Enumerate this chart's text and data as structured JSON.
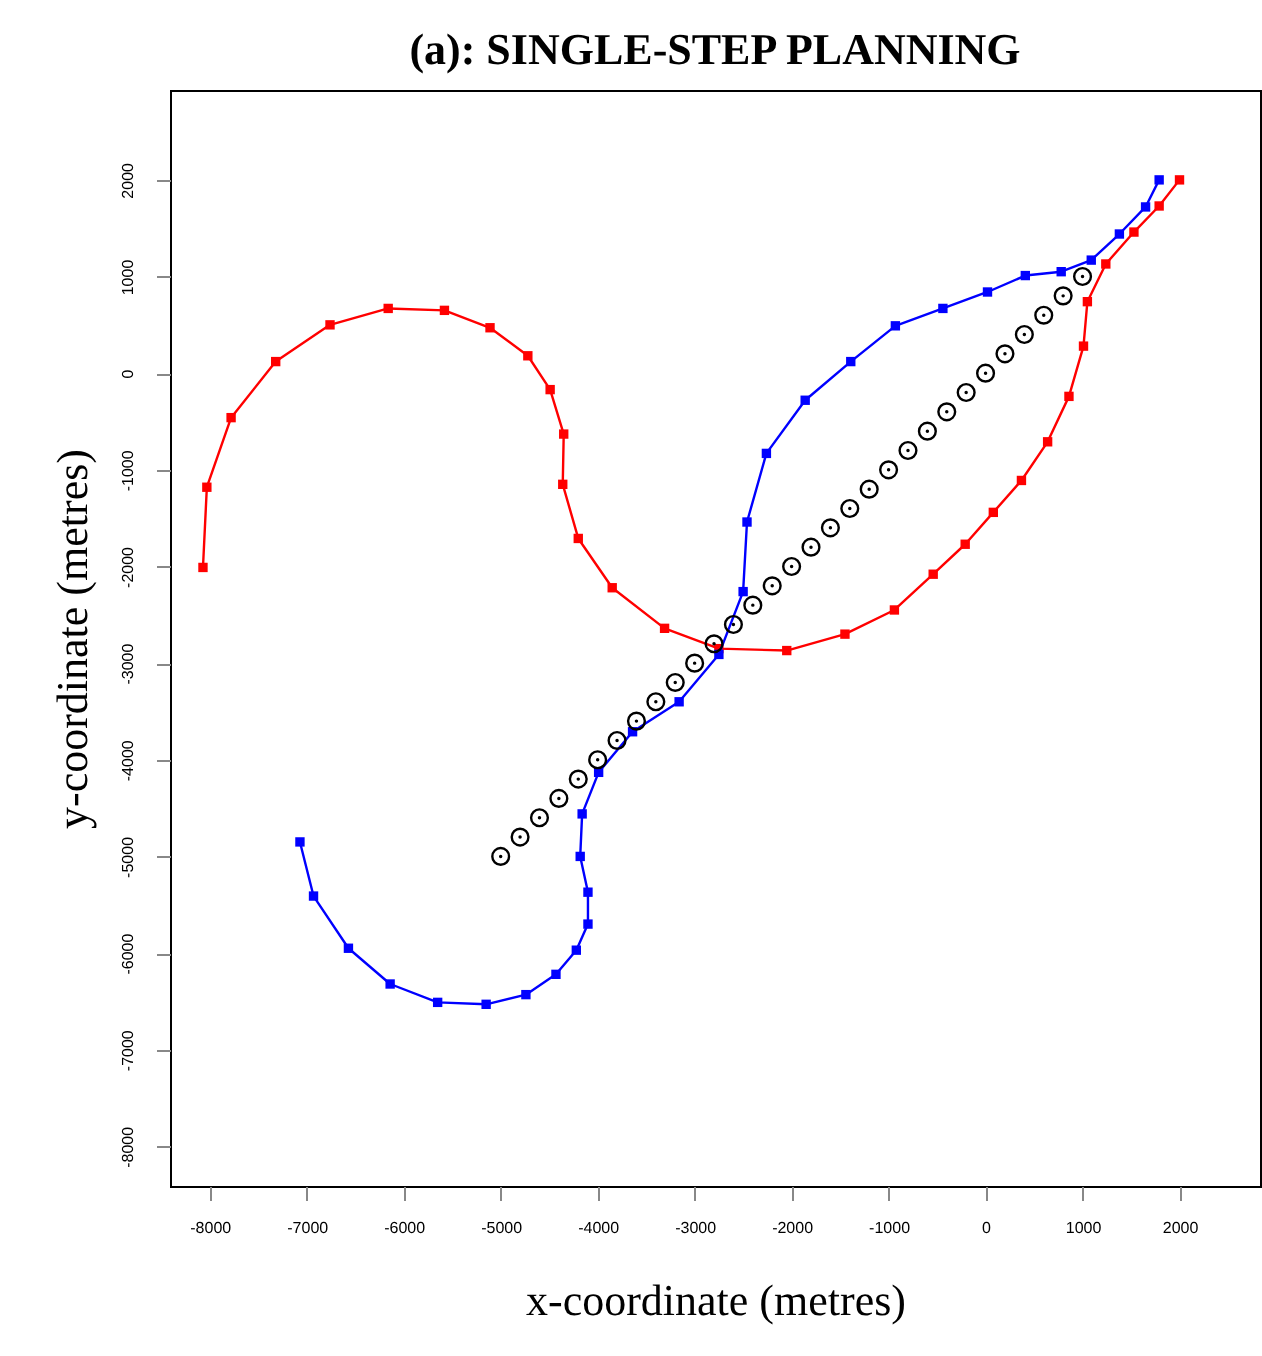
{
  "chart_data": {
    "type": "line",
    "title": "(a): SINGLE-STEP PLANNING",
    "xlabel": "x-coordinate (metres)",
    "ylabel": "y-coordinate (metres)",
    "xlim": [
      -8410,
      2830
    ],
    "ylim": [
      -8410,
      2930
    ],
    "xticks": [
      -8000,
      -7000,
      -6000,
      -5000,
      -4000,
      -3000,
      -2000,
      -1000,
      0,
      1000,
      2000
    ],
    "yticks": [
      -8000,
      -7000,
      -6000,
      -5000,
      -4000,
      -3000,
      -2000,
      -1000,
      0,
      1000,
      2000
    ],
    "grid": false,
    "legend": false,
    "line_style": "solid",
    "series": [
      {
        "marker": "square",
        "color": "#ff0000",
        "x": [
          -8070,
          -8030,
          -7780,
          -7320,
          -6760,
          -6160,
          -5580,
          -5110,
          -4720,
          -4490,
          -4350,
          -4360,
          -4200,
          -3850,
          -3310,
          -2750,
          -2050,
          -1450,
          -940,
          -540,
          -210,
          80,
          370,
          640,
          860,
          1010,
          1050,
          1240,
          1530,
          1790,
          2000
        ],
        "values": [
          -2010,
          -1180,
          -460,
          120,
          500,
          670,
          650,
          470,
          180,
          -170,
          -630,
          -1150,
          -1710,
          -2220,
          -2640,
          -2850,
          -2870,
          -2700,
          -2450,
          -2080,
          -1770,
          -1440,
          -1110,
          -710,
          -240,
          280,
          740,
          1130,
          1460,
          1730,
          2000
        ]
      },
      {
        "marker": "square",
        "color": "#0000ff",
        "x": [
          1790,
          1650,
          1380,
          1090,
          780,
          410,
          20,
          -440,
          -930,
          -1390,
          -1860,
          -2260,
          -2460,
          -2500,
          -2750,
          -3160,
          -3640,
          -3990,
          -4160,
          -4180,
          -4100,
          -4100,
          -4220,
          -4430,
          -4740,
          -5150,
          -5650,
          -6140,
          -6570,
          -6930,
          -7070
        ],
        "values": [
          2000,
          1720,
          1440,
          1170,
          1050,
          1010,
          840,
          670,
          490,
          120,
          -280,
          -830,
          -1540,
          -2260,
          -2910,
          -3400,
          -3710,
          -4130,
          -4560,
          -5000,
          -5370,
          -5700,
          -5970,
          -6220,
          -6430,
          -6530,
          -6510,
          -6320,
          -5950,
          -5410,
          -4850
        ]
      },
      {
        "type": "scatter",
        "marker": "circle",
        "color": "#000000",
        "x": [
          -5000,
          -4800,
          -4600,
          -4400,
          -4200,
          -4000,
          -3800,
          -3600,
          -3400,
          -3200,
          -3000,
          -2800,
          -2600,
          -2400,
          -2200,
          -2000,
          -1800,
          -1600,
          -1400,
          -1200,
          -1000,
          -800,
          -600,
          -400,
          -200,
          0,
          200,
          400,
          600,
          800,
          1000
        ],
        "values": [
          -5000,
          -4800,
          -4600,
          -4400,
          -4200,
          -4000,
          -3800,
          -3600,
          -3400,
          -3200,
          -3000,
          -2800,
          -2600,
          -2400,
          -2200,
          -2000,
          -1800,
          -1600,
          -1400,
          -1200,
          -1000,
          -800,
          -600,
          -400,
          -200,
          0,
          200,
          400,
          600,
          800,
          1000
        ]
      }
    ]
  }
}
